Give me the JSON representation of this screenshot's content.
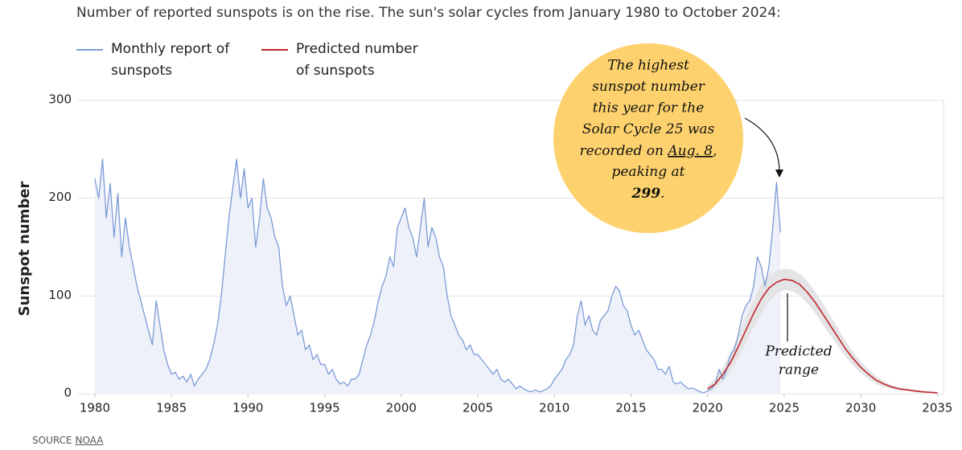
{
  "chart_data": {
    "type": "line",
    "title": "Number of reported sunspots is on the rise. The sun's solar cycles from January 1980 to October 2024:",
    "ylabel": "Sunspot number",
    "xlim": [
      1978.9,
      2035.4
    ],
    "ylim": [
      0,
      300
    ],
    "xticks": [
      1980,
      1985,
      1990,
      1995,
      2000,
      2005,
      2010,
      2015,
      2020,
      2025,
      2030,
      2035
    ],
    "yticks": [
      0,
      100,
      200,
      300
    ],
    "grid": true,
    "series": [
      {
        "name": "Monthly report of sunspots",
        "color": "#7b9bd6",
        "fill": "#eef1fa",
        "x": [
          1980,
          1980.25,
          1980.5,
          1980.75,
          1981,
          1981.25,
          1981.5,
          1981.75,
          1982,
          1982.25,
          1982.5,
          1982.75,
          1983,
          1983.25,
          1983.5,
          1983.75,
          1984,
          1984.25,
          1984.5,
          1984.75,
          1985,
          1985.25,
          1985.5,
          1985.75,
          1986,
          1986.25,
          1986.5,
          1986.75,
          1987,
          1987.25,
          1987.5,
          1987.75,
          1988,
          1988.25,
          1988.5,
          1988.75,
          1989,
          1989.25,
          1989.5,
          1989.75,
          1990,
          1990.25,
          1990.5,
          1990.75,
          1991,
          1991.25,
          1991.5,
          1991.75,
          1992,
          1992.25,
          1992.5,
          1992.75,
          1993,
          1993.25,
          1993.5,
          1993.75,
          1994,
          1994.25,
          1994.5,
          1994.75,
          1995,
          1995.25,
          1995.5,
          1995.75,
          1996,
          1996.25,
          1996.5,
          1996.75,
          1997,
          1997.25,
          1997.5,
          1997.75,
          1998,
          1998.25,
          1998.5,
          1998.75,
          1999,
          1999.25,
          1999.5,
          1999.75,
          2000,
          2000.25,
          2000.5,
          2000.75,
          2001,
          2001.25,
          2001.5,
          2001.75,
          2002,
          2002.25,
          2002.5,
          2002.75,
          2003,
          2003.25,
          2003.5,
          2003.75,
          2004,
          2004.25,
          2004.5,
          2004.75,
          2005,
          2005.25,
          2005.5,
          2005.75,
          2006,
          2006.25,
          2006.5,
          2006.75,
          2007,
          2007.25,
          2007.5,
          2007.75,
          2008,
          2008.25,
          2008.5,
          2008.75,
          2009,
          2009.25,
          2009.5,
          2009.75,
          2010,
          2010.25,
          2010.5,
          2010.75,
          2011,
          2011.25,
          2011.5,
          2011.75,
          2012,
          2012.25,
          2012.5,
          2012.75,
          2013,
          2013.25,
          2013.5,
          2013.75,
          2014,
          2014.25,
          2014.5,
          2014.75,
          2015,
          2015.25,
          2015.5,
          2015.75,
          2016,
          2016.25,
          2016.5,
          2016.75,
          2017,
          2017.25,
          2017.5,
          2017.75,
          2018,
          2018.25,
          2018.5,
          2018.75,
          2019,
          2019.25,
          2019.5,
          2019.75,
          2020,
          2020.25,
          2020.5,
          2020.75,
          2021,
          2021.25,
          2021.5,
          2021.75,
          2022,
          2022.25,
          2022.5,
          2022.75,
          2023,
          2023.25,
          2023.5,
          2023.75,
          2024,
          2024.25,
          2024.5,
          2024.75
        ],
        "values": [
          220,
          200,
          240,
          180,
          215,
          160,
          205,
          140,
          180,
          150,
          130,
          110,
          95,
          80,
          65,
          50,
          95,
          70,
          45,
          30,
          20,
          22,
          15,
          18,
          12,
          20,
          8,
          15,
          20,
          25,
          35,
          50,
          70,
          100,
          140,
          180,
          210,
          240,
          200,
          230,
          190,
          200,
          150,
          180,
          220,
          190,
          180,
          160,
          150,
          110,
          90,
          100,
          80,
          60,
          65,
          45,
          50,
          35,
          40,
          30,
          30,
          20,
          25,
          15,
          10,
          12,
          8,
          15,
          15,
          20,
          35,
          50,
          60,
          75,
          95,
          110,
          120,
          140,
          130,
          170,
          180,
          190,
          170,
          160,
          140,
          170,
          200,
          150,
          170,
          160,
          140,
          130,
          100,
          80,
          70,
          60,
          55,
          45,
          50,
          40,
          40,
          35,
          30,
          25,
          20,
          25,
          15,
          12,
          15,
          10,
          5,
          8,
          5,
          3,
          2,
          4,
          2,
          3,
          5,
          8,
          15,
          20,
          25,
          35,
          40,
          50,
          80,
          95,
          70,
          80,
          65,
          60,
          75,
          80,
          85,
          100,
          110,
          105,
          90,
          85,
          70,
          60,
          65,
          55,
          45,
          40,
          35,
          25,
          25,
          20,
          28,
          12,
          10,
          12,
          8,
          5,
          6,
          4,
          2,
          1,
          3,
          5,
          10,
          25,
          15,
          25,
          40,
          45,
          60,
          80,
          90,
          95,
          110,
          140,
          130,
          110,
          130,
          170,
          216,
          165
        ]
      },
      {
        "name": "Predicted number of sunspots",
        "color": "#c0272d",
        "x": [
          2020,
          2020.5,
          2021,
          2021.5,
          2022,
          2022.5,
          2023,
          2023.5,
          2024,
          2024.5,
          2025,
          2025.5,
          2026,
          2026.5,
          2027,
          2027.5,
          2028,
          2028.5,
          2029,
          2029.5,
          2030,
          2030.5,
          2031,
          2031.5,
          2032,
          2032.5,
          2033,
          2033.5,
          2034,
          2034.5,
          2035
        ],
        "values": [
          5,
          10,
          20,
          32,
          48,
          65,
          82,
          97,
          108,
          114,
          117,
          116,
          112,
          104,
          94,
          82,
          70,
          58,
          46,
          36,
          27,
          20,
          14,
          10,
          7,
          5,
          4,
          3,
          2,
          1.5,
          1
        ],
        "high": [
          8,
          15,
          27,
          42,
          60,
          78,
          96,
          112,
          122,
          126,
          128,
          127,
          123,
          115,
          105,
          93,
          80,
          67,
          54,
          43,
          33,
          25,
          18,
          13,
          9,
          7,
          5,
          4,
          3,
          2,
          1.5
        ],
        "low": [
          2,
          5,
          13,
          22,
          36,
          52,
          68,
          82,
          94,
          102,
          106,
          105,
          101,
          93,
          83,
          71,
          60,
          49,
          38,
          29,
          21,
          15,
          10,
          7,
          5,
          3,
          3,
          2,
          1,
          1,
          0.5
        ],
        "band_color": "#e4e4e6"
      }
    ],
    "callout": {
      "lines": [
        "The highest",
        "sunspot number",
        "this year for the",
        "Solar Cycle 25 was"
      ],
      "recorded": [
        "recorded on ",
        "Aug. 8",
        ","
      ],
      "peaking": "peaking at",
      "peak": [
        "299",
        "."
      ],
      "color": "#fdd26e"
    },
    "range_label": [
      "Predicted",
      "range"
    ],
    "source": [
      "SOURCE",
      "NOAA"
    ]
  }
}
